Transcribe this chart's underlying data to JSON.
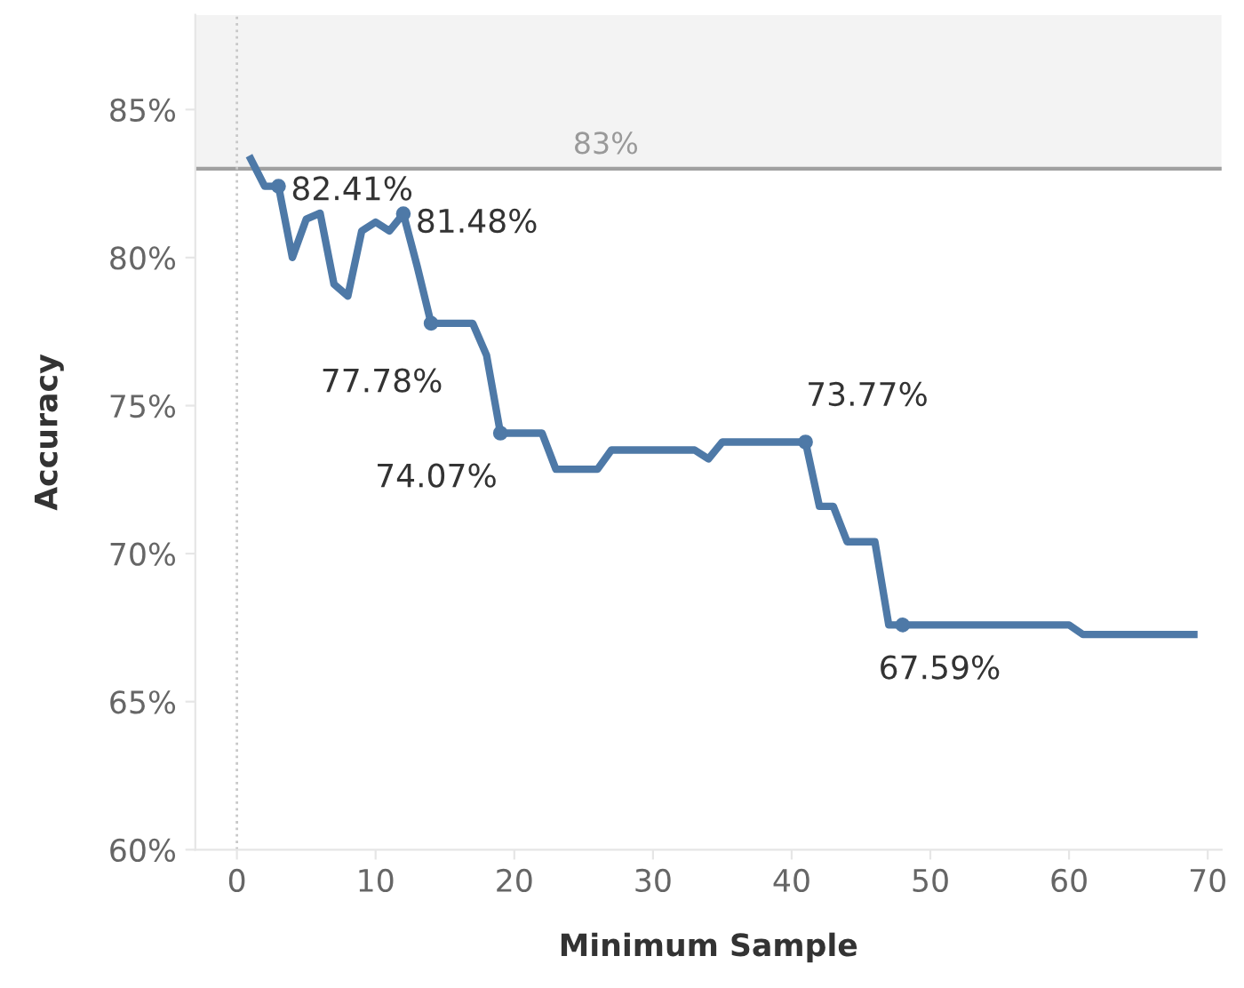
{
  "chart_data": {
    "type": "line",
    "xlabel": "Minimum Sample",
    "ylabel": "Accuracy",
    "x": [
      1,
      2,
      3,
      4,
      5,
      6,
      7,
      8,
      9,
      10,
      11,
      12,
      13,
      14,
      15,
      16,
      17,
      18,
      19,
      20,
      21,
      22,
      23,
      24,
      25,
      26,
      27,
      28,
      29,
      30,
      31,
      32,
      33,
      34,
      35,
      36,
      37,
      38,
      39,
      40,
      41,
      42,
      43,
      44,
      45,
      46,
      47,
      48,
      49,
      50,
      51,
      52,
      53,
      54,
      55,
      56,
      57,
      58,
      59,
      60,
      61,
      62,
      63,
      64,
      65,
      66,
      67,
      68,
      69
    ],
    "series": [
      {
        "color": "#4e79a7",
        "values": [
          83.33,
          82.41,
          82.41,
          80.0,
          81.3,
          81.5,
          79.1,
          78.7,
          80.9,
          81.2,
          80.9,
          81.48,
          79.7,
          77.78,
          77.78,
          77.78,
          77.78,
          76.7,
          74.07,
          74.07,
          74.07,
          74.07,
          72.85,
          72.85,
          72.85,
          72.85,
          73.5,
          73.5,
          73.5,
          73.5,
          73.5,
          73.5,
          73.5,
          73.2,
          73.77,
          73.77,
          73.77,
          73.77,
          73.77,
          73.77,
          73.77,
          71.6,
          71.6,
          70.4,
          70.4,
          70.4,
          67.59,
          67.59,
          67.59,
          67.59,
          67.59,
          67.59,
          67.59,
          67.59,
          67.59,
          67.59,
          67.59,
          67.59,
          67.59,
          67.59,
          67.27,
          67.27,
          67.27,
          67.27,
          67.27,
          67.27,
          67.27,
          67.27,
          67.27
        ],
        "value_labels": [
          null,
          null,
          "82.41%",
          null,
          null,
          null,
          null,
          null,
          null,
          null,
          null,
          "81.48%",
          null,
          "77.78%",
          null,
          null,
          null,
          null,
          "74.07%",
          null,
          null,
          null,
          null,
          null,
          null,
          null,
          null,
          null,
          null,
          null,
          null,
          null,
          null,
          null,
          null,
          null,
          null,
          null,
          null,
          null,
          "73.77%",
          null,
          null,
          null,
          null,
          null,
          null,
          "67.59%",
          null,
          null,
          null,
          null,
          null,
          null,
          null,
          null,
          null,
          null,
          null,
          null,
          null,
          null,
          null,
          null,
          null,
          null,
          null,
          null,
          null
        ]
      }
    ],
    "xlim": [
      -3,
      71
    ],
    "xticks": [
      0,
      10,
      20,
      30,
      40,
      50,
      60,
      70
    ],
    "ylim": [
      60,
      88.2
    ],
    "yticks": [
      {
        "value": 60,
        "label": "60%"
      },
      {
        "value": 65,
        "label": "65%"
      },
      {
        "value": 70,
        "label": "70%"
      },
      {
        "value": 75,
        "label": "75%"
      },
      {
        "value": 80,
        "label": "80%"
      },
      {
        "value": 85,
        "label": "85%"
      }
    ],
    "ref_lines": [
      {
        "axis": "y",
        "value": 83,
        "label": "83%",
        "color": "#a0a0a0",
        "line_style": "solid"
      },
      {
        "axis": "x",
        "value": 0,
        "color": "#c8c8c8",
        "line_style": "dotted"
      }
    ],
    "bands": [
      {
        "axis": "y",
        "from": 83,
        "to": 88.2,
        "color": "#f3f3f3"
      }
    ],
    "line_style": "solid",
    "grid": false,
    "legend": false
  }
}
